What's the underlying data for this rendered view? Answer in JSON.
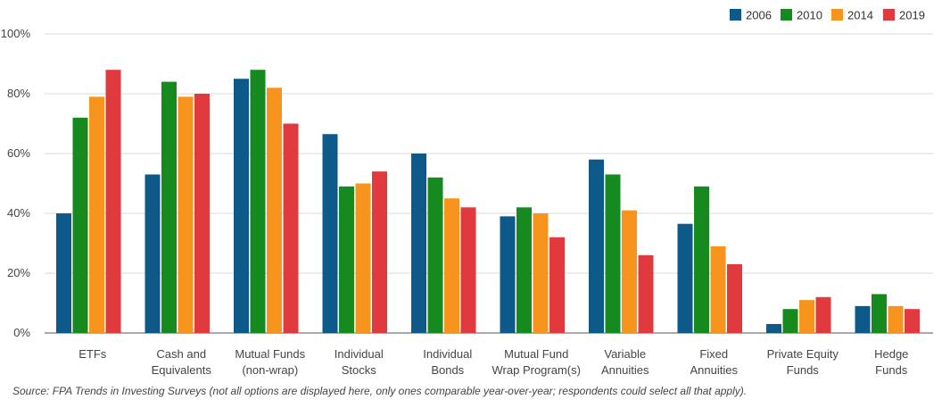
{
  "chart_data": {
    "type": "bar",
    "categories": [
      [
        "ETFs"
      ],
      [
        "Cash and",
        "Equivalents"
      ],
      [
        "Mutual Funds",
        "(non-wrap)"
      ],
      [
        "Individual",
        "Stocks"
      ],
      [
        "Individual",
        "Bonds"
      ],
      [
        "Mutual Fund",
        "Wrap Program(s)"
      ],
      [
        "Variable",
        "Annuities"
      ],
      [
        "Fixed",
        "Annuities"
      ],
      [
        "Private Equity",
        "Funds"
      ],
      [
        "Hedge",
        "Funds"
      ]
    ],
    "series": [
      {
        "name": "2006",
        "color": "#0d5a8a",
        "values": [
          40,
          53,
          85,
          66.5,
          60,
          39,
          58,
          36.5,
          3,
          9
        ]
      },
      {
        "name": "2010",
        "color": "#16891f",
        "values": [
          72,
          84,
          88,
          49,
          52,
          42,
          53,
          49,
          8,
          13
        ]
      },
      {
        "name": "2014",
        "color": "#f7941d",
        "values": [
          79,
          79,
          82,
          50,
          45,
          40,
          41,
          29,
          11,
          9
        ]
      },
      {
        "name": "2019",
        "color": "#e03a3e",
        "values": [
          88,
          80,
          70,
          54,
          42,
          32,
          26,
          23,
          12,
          8
        ]
      }
    ],
    "yticks": [
      "0%",
      "20%",
      "40%",
      "60%",
      "80%",
      "100%"
    ],
    "ylim": [
      0,
      100
    ],
    "legend": "top-right",
    "grid": true,
    "source": "Source: FPA Trends in Investing Surveys (not all options are displayed here, only ones comparable year-over-year; respondents could select all that apply)."
  }
}
